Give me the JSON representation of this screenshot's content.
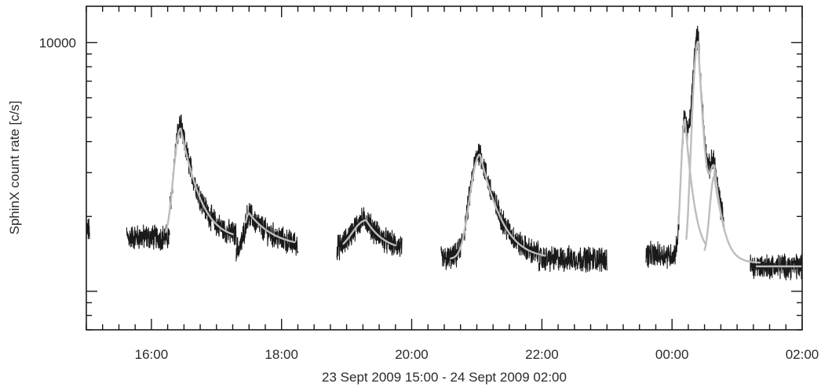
{
  "chart_data": {
    "type": "line",
    "xlabel": "23 Sept 2009 15:00 - 24 Sept 2009 02:00",
    "ylabel": "SphinX count rate [c/s]",
    "y_scale": "log",
    "grid": false,
    "legend": "none",
    "xlim": [
      15.0,
      26.0
    ],
    "ylim": [
      700,
      14000
    ],
    "x_ticks": [
      {
        "value": 16,
        "label": "16:00"
      },
      {
        "value": 18,
        "label": "18:00"
      },
      {
        "value": 20,
        "label": "20:00"
      },
      {
        "value": 22,
        "label": "22:00"
      },
      {
        "value": 24,
        "label": "00:00"
      },
      {
        "value": 26,
        "label": "02:00"
      }
    ],
    "y_ticks": [
      {
        "value": 10000,
        "label": "10000"
      }
    ],
    "colors": {
      "data": "#1a1a1a",
      "fit": "#bdbdbd"
    },
    "series": [
      {
        "role": "data",
        "segments": [
          {
            "t0": 15.0,
            "t1": 15.05,
            "b": 1760,
            "flares": []
          },
          {
            "t0": 15.62,
            "t1": 16.28,
            "b": 1650,
            "flares": []
          },
          {
            "t0": 16.28,
            "t1": 17.3,
            "b": 1620,
            "flares": [
              {
                "tp": 16.45,
                "a": 3000,
                "r": 0.09,
                "d": 0.22
              }
            ]
          },
          {
            "t0": 17.3,
            "t1": 18.25,
            "b": 1480,
            "flares": [
              {
                "tp": 17.5,
                "a": 570,
                "r": 0.06,
                "d": 0.35
              }
            ]
          },
          {
            "t0": 18.85,
            "t1": 19.85,
            "b": 1450,
            "flares": [
              {
                "tp": 19.3,
                "a": 500,
                "r": 0.2,
                "d": 0.25
              }
            ]
          },
          {
            "t0": 20.45,
            "t1": 21.95,
            "b": 1350,
            "flares": [
              {
                "tp": 21.05,
                "a": 2300,
                "r": 0.13,
                "d": 0.25
              }
            ]
          },
          {
            "t0": 21.95,
            "t1": 23.0,
            "b": 1350,
            "flares": []
          },
          {
            "t0": 23.6,
            "t1": 24.35,
            "b": 1400,
            "flares": [
              {
                "tp": 24.2,
                "a": 3500,
                "r": 0.05,
                "d": 0.1
              },
              {
                "tp": 24.4,
                "a": 8800,
                "r": 0.07,
                "d": 0.08
              },
              {
                "tp": 24.65,
                "a": 1500,
                "r": 0.06,
                "d": 0.12
              }
            ]
          },
          {
            "t0": 24.35,
            "t1": 24.8,
            "b": 1400,
            "flares": [
              {
                "tp": 24.2,
                "a": 3500,
                "r": 0.05,
                "d": 0.1
              },
              {
                "tp": 24.4,
                "a": 8800,
                "r": 0.07,
                "d": 0.08
              },
              {
                "tp": 24.65,
                "a": 1500,
                "r": 0.06,
                "d": 0.12
              }
            ]
          },
          {
            "t0": 25.2,
            "t1": 26.0,
            "b": 1260,
            "flares": []
          }
        ]
      },
      {
        "role": "fit",
        "curves": [
          {
            "t0": 16.22,
            "t1": 17.25,
            "b": 1620,
            "flares": [
              {
                "tp": 16.45,
                "a": 2900,
                "r": 0.09,
                "d": 0.22
              }
            ]
          },
          {
            "t0": 17.45,
            "t1": 18.2,
            "b": 1500,
            "flares": [
              {
                "tp": 17.5,
                "a": 560,
                "r": 0.06,
                "d": 0.35
              }
            ]
          },
          {
            "t0": 18.95,
            "t1": 19.75,
            "b": 1450,
            "flares": [
              {
                "tp": 19.3,
                "a": 480,
                "r": 0.2,
                "d": 0.25
              }
            ]
          },
          {
            "t0": 20.6,
            "t1": 22.05,
            "b": 1350,
            "flares": [
              {
                "tp": 21.05,
                "a": 2200,
                "r": 0.13,
                "d": 0.25
              }
            ]
          },
          {
            "t0": 24.1,
            "t1": 24.52,
            "b": 1400,
            "flares": [
              {
                "tp": 24.2,
                "a": 3500,
                "r": 0.05,
                "d": 0.1
              }
            ]
          },
          {
            "t0": 24.22,
            "t1": 25.35,
            "b": 1300,
            "flares": [
              {
                "tp": 24.4,
                "a": 8800,
                "r": 0.07,
                "d": 0.08
              },
              {
                "tp": 24.65,
                "a": 1500,
                "r": 0.06,
                "d": 0.12
              }
            ]
          },
          {
            "t0": 24.5,
            "t1": 24.8,
            "b": 1400,
            "flares": [
              {
                "tp": 24.65,
                "a": 1500,
                "r": 0.06,
                "d": 0.12
              }
            ]
          },
          {
            "t0": 25.3,
            "t1": 26.0,
            "b": 1260,
            "flares": []
          }
        ]
      }
    ]
  }
}
